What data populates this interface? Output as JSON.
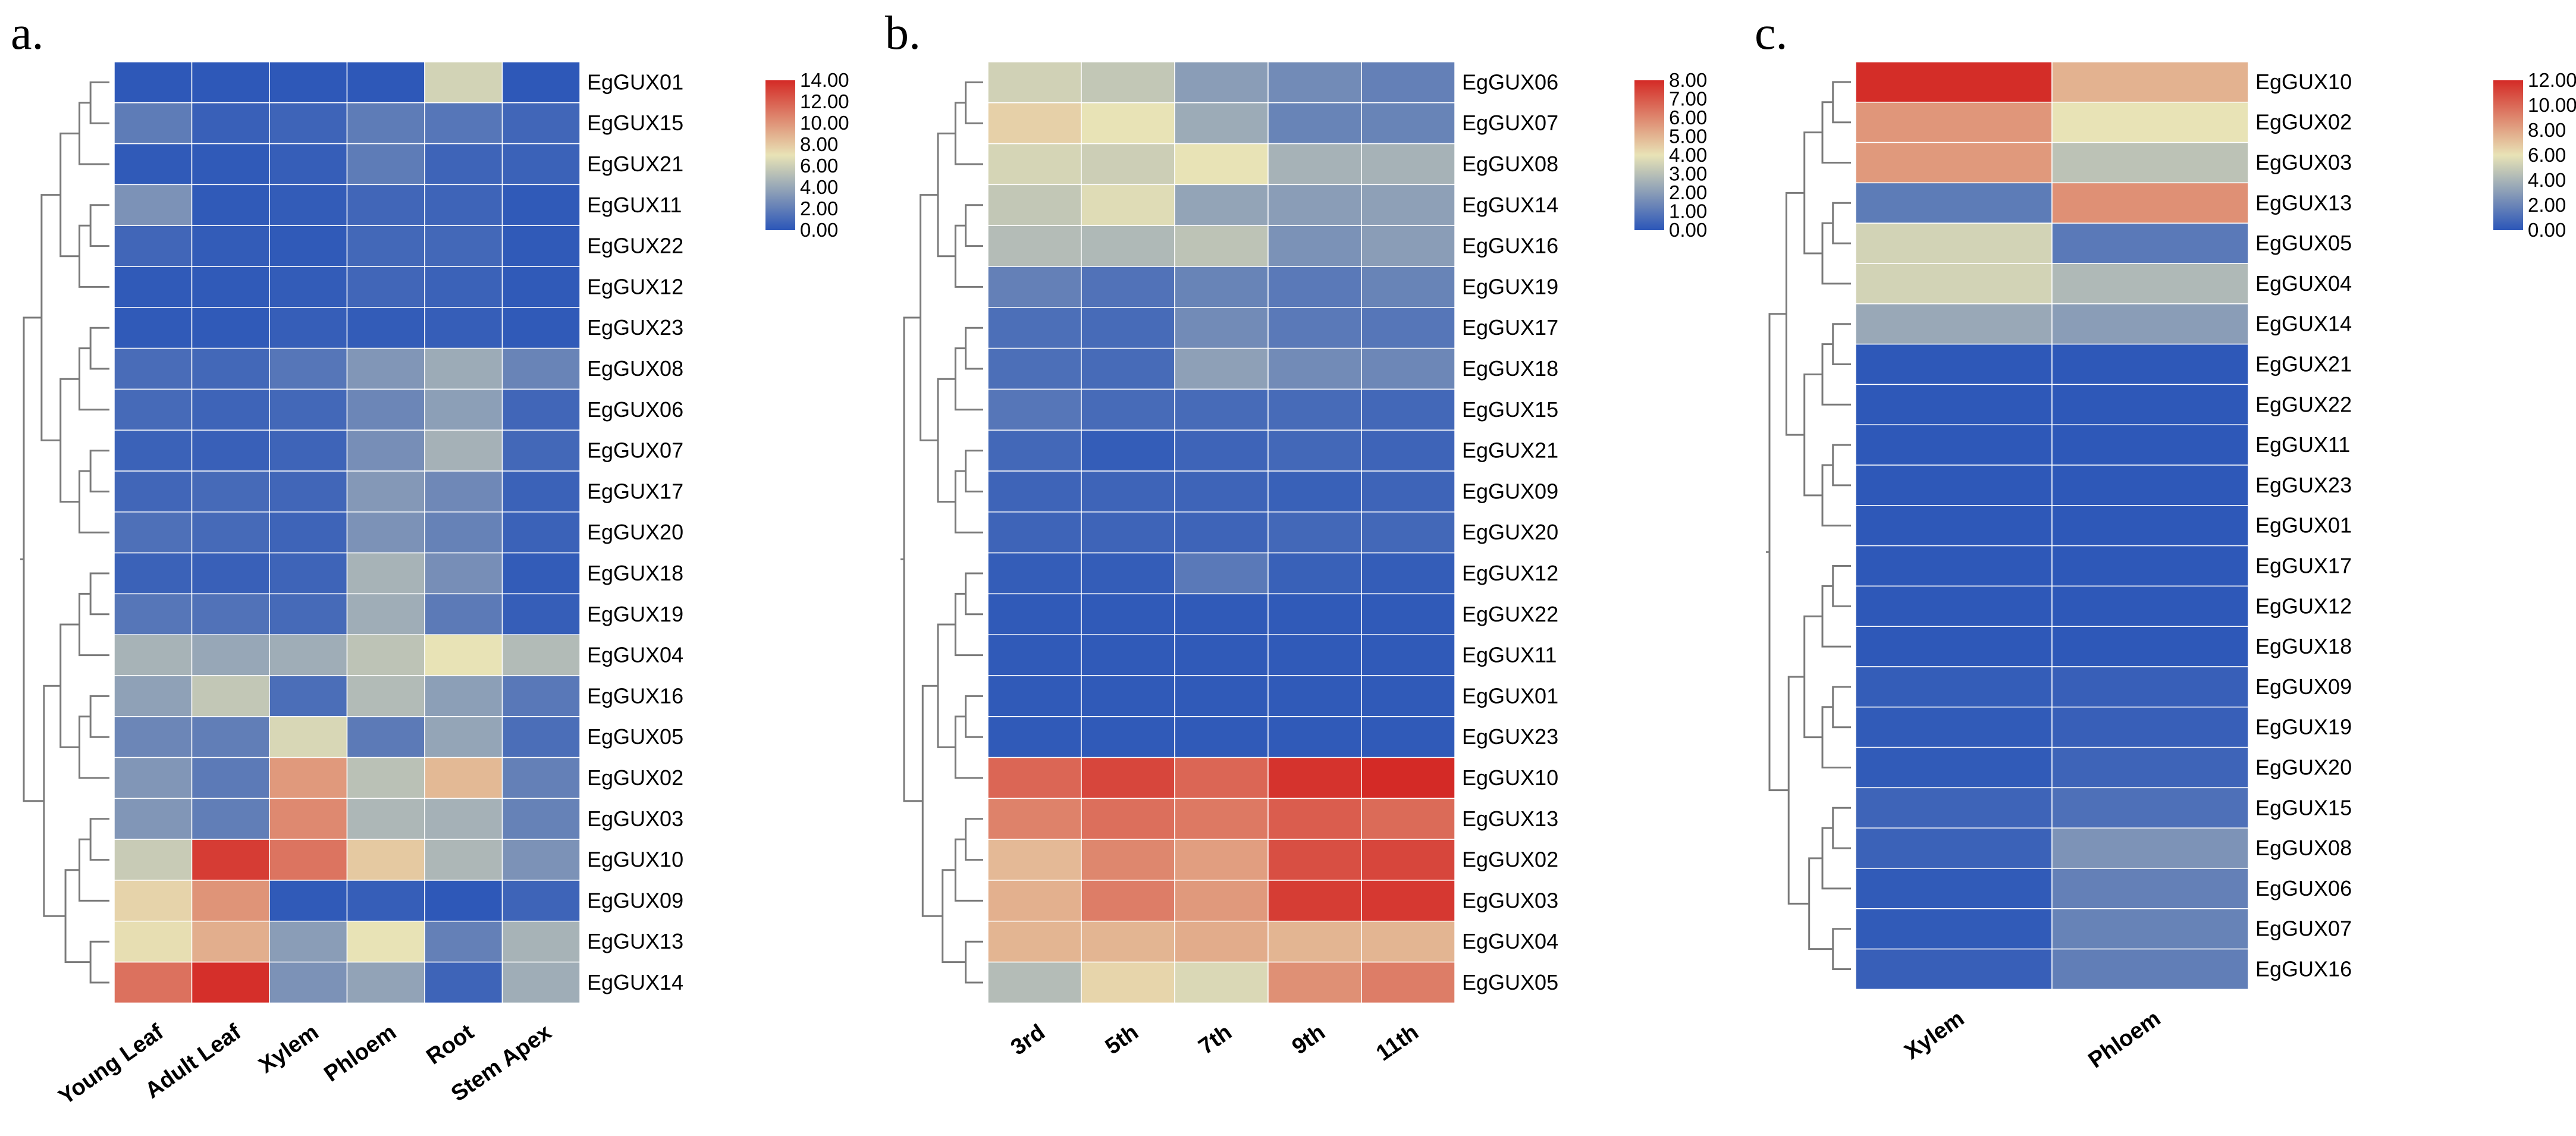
{
  "chart_data": [
    {
      "type": "heatmap",
      "panel_label": "a.",
      "columns": [
        "Young Leaf",
        "Adult Leaf",
        "Xylem",
        "Phloem",
        "Root",
        "Stem Apex"
      ],
      "rows": [
        "EgGUX01",
        "EgGUX15",
        "EgGUX21",
        "EgGUX11",
        "EgGUX22",
        "EgGUX12",
        "EgGUX23",
        "EgGUX08",
        "EgGUX06",
        "EgGUX07",
        "EgGUX17",
        "EgGUX20",
        "EgGUX18",
        "EgGUX19",
        "EgGUX04",
        "EgGUX16",
        "EgGUX05",
        "EgGUX02",
        "EgGUX03",
        "EgGUX10",
        "EgGUX09",
        "EgGUX13",
        "EgGUX14"
      ],
      "values": [
        [
          0.1,
          0.1,
          0.1,
          0.1,
          6.2,
          0.1
        ],
        [
          1.9,
          0.5,
          0.7,
          1.9,
          1.6,
          0.8
        ],
        [
          0.2,
          0.2,
          0.4,
          1.9,
          0.7,
          0.6
        ],
        [
          3.0,
          0.2,
          0.3,
          0.8,
          0.7,
          0.2
        ],
        [
          0.8,
          0.3,
          0.2,
          0.9,
          0.9,
          0.2
        ],
        [
          0.2,
          0.2,
          0.3,
          0.8,
          0.6,
          0.2
        ],
        [
          0.2,
          0.2,
          0.4,
          0.3,
          0.4,
          0.2
        ],
        [
          1.1,
          0.9,
          1.6,
          3.2,
          4.2,
          2.3
        ],
        [
          1.0,
          0.7,
          0.9,
          2.4,
          3.6,
          0.8
        ],
        [
          0.6,
          0.5,
          0.7,
          2.8,
          4.5,
          0.9
        ],
        [
          0.8,
          1.0,
          0.8,
          3.3,
          2.5,
          0.6
        ],
        [
          1.3,
          1.0,
          0.7,
          3.0,
          2.2,
          0.6
        ],
        [
          0.6,
          0.5,
          0.7,
          4.6,
          2.8,
          0.3
        ],
        [
          1.6,
          1.4,
          1.0,
          4.3,
          1.8,
          0.4
        ],
        [
          4.6,
          4.0,
          4.3,
          5.4,
          7.0,
          5.0
        ],
        [
          3.7,
          5.6,
          1.2,
          5.0,
          3.6,
          1.7
        ],
        [
          2.4,
          2.0,
          6.4,
          1.8,
          3.9,
          1.2
        ],
        [
          3.2,
          1.8,
          9.8,
          5.3,
          8.6,
          2.1
        ],
        [
          3.2,
          2.0,
          10.4,
          4.8,
          4.5,
          2.2
        ],
        [
          5.8,
          13.3,
          11.2,
          8.0,
          4.8,
          3.0
        ],
        [
          7.6,
          10.0,
          0.2,
          0.4,
          0.1,
          0.7
        ],
        [
          7.2,
          9.0,
          3.5,
          7.0,
          2.1,
          4.6
        ],
        [
          11.3,
          13.8,
          3.0,
          3.8,
          0.7,
          4.3
        ]
      ],
      "range": [
        0,
        14
      ],
      "colorbar_ticks": [
        "0.00",
        "2.00",
        "4.00",
        "6.00",
        "8.00",
        "10.00",
        "12.00",
        "14.00"
      ]
    },
    {
      "type": "heatmap",
      "panel_label": "b.",
      "columns": [
        "3rd",
        "5th",
        "7th",
        "9th",
        "11th"
      ],
      "rows": [
        "EgGUX06",
        "EgGUX07",
        "EgGUX08",
        "EgGUX14",
        "EgGUX16",
        "EgGUX19",
        "EgGUX17",
        "EgGUX18",
        "EgGUX15",
        "EgGUX21",
        "EgGUX09",
        "EgGUX20",
        "EgGUX12",
        "EgGUX22",
        "EgGUX11",
        "EgGUX01",
        "EgGUX23",
        "EgGUX10",
        "EgGUX13",
        "EgGUX02",
        "EgGUX03",
        "EgGUX04",
        "EgGUX05"
      ],
      "values": [
        [
          3.5,
          3.2,
          2.0,
          1.5,
          1.2
        ],
        [
          4.4,
          4.0,
          2.4,
          1.3,
          1.3
        ],
        [
          3.6,
          3.4,
          4.0,
          2.6,
          2.6
        ],
        [
          3.2,
          3.8,
          2.2,
          2.0,
          2.1
        ],
        [
          2.9,
          2.8,
          3.1,
          1.7,
          2.0
        ],
        [
          1.2,
          0.8,
          1.3,
          1.0,
          1.3
        ],
        [
          0.7,
          0.6,
          1.5,
          1.0,
          0.9
        ],
        [
          0.7,
          0.6,
          2.1,
          1.5,
          1.4
        ],
        [
          0.9,
          0.6,
          0.6,
          0.6,
          0.5
        ],
        [
          0.5,
          0.2,
          0.4,
          0.5,
          0.4
        ],
        [
          0.4,
          0.4,
          0.4,
          0.3,
          0.4
        ],
        [
          0.4,
          0.4,
          0.4,
          0.5,
          0.5
        ],
        [
          0.2,
          0.2,
          1.0,
          0.3,
          0.2
        ],
        [
          0.1,
          0.1,
          0.1,
          0.1,
          0.1
        ],
        [
          0.1,
          0.1,
          0.1,
          0.1,
          0.1
        ],
        [
          0.1,
          0.1,
          0.1,
          0.1,
          0.1
        ],
        [
          0.1,
          0.1,
          0.1,
          0.1,
          0.1
        ],
        [
          6.7,
          7.4,
          6.7,
          7.8,
          8.0
        ],
        [
          6.1,
          6.5,
          6.3,
          6.9,
          6.6
        ],
        [
          4.9,
          6.0,
          5.5,
          7.2,
          7.4
        ],
        [
          5.1,
          6.2,
          5.6,
          7.6,
          7.7
        ],
        [
          5.0,
          5.0,
          5.2,
          5.0,
          5.0
        ],
        [
          2.9,
          4.3,
          3.7,
          5.8,
          6.2
        ]
      ],
      "range": [
        0,
        8
      ],
      "colorbar_ticks": [
        "0.00",
        "1.00",
        "2.00",
        "3.00",
        "4.00",
        "5.00",
        "6.00",
        "7.00",
        "8.00"
      ]
    },
    {
      "type": "heatmap",
      "panel_label": "c.",
      "columns": [
        "Xylem",
        "Phloem"
      ],
      "rows": [
        "EgGUX10",
        "EgGUX02",
        "EgGUX03",
        "EgGUX13",
        "EgGUX05",
        "EgGUX04",
        "EgGUX14",
        "EgGUX21",
        "EgGUX22",
        "EgGUX11",
        "EgGUX23",
        "EgGUX01",
        "EgGUX17",
        "EgGUX12",
        "EgGUX18",
        "EgGUX09",
        "EgGUX19",
        "EgGUX20",
        "EgGUX15",
        "EgGUX08",
        "EgGUX06",
        "EgGUX07",
        "EgGUX16"
      ],
      "values": [
        [
          11.9,
          7.6
        ],
        [
          8.5,
          6.0
        ],
        [
          8.4,
          4.6
        ],
        [
          1.6,
          8.7
        ],
        [
          5.3,
          1.5
        ],
        [
          5.3,
          4.2
        ],
        [
          3.5,
          3.0
        ],
        [
          0.1,
          0.1
        ],
        [
          0.1,
          0.1
        ],
        [
          0.1,
          0.1
        ],
        [
          0.1,
          0.1
        ],
        [
          0.1,
          0.1
        ],
        [
          0.1,
          0.1
        ],
        [
          0.1,
          0.1
        ],
        [
          0.1,
          0.1
        ],
        [
          0.3,
          0.4
        ],
        [
          0.2,
          0.4
        ],
        [
          0.2,
          0.6
        ],
        [
          0.6,
          1.1
        ],
        [
          0.5,
          2.6
        ],
        [
          0.2,
          1.8
        ],
        [
          0.2,
          1.9
        ],
        [
          0.4,
          1.7
        ]
      ],
      "range": [
        0,
        12
      ],
      "colorbar_ticks": [
        "0.00",
        "2.00",
        "4.00",
        "6.00",
        "8.00",
        "10.00",
        "12.00"
      ]
    }
  ],
  "colorscale": [
    "#2b56b8",
    "#e8e3b6",
    "#d42a26"
  ]
}
